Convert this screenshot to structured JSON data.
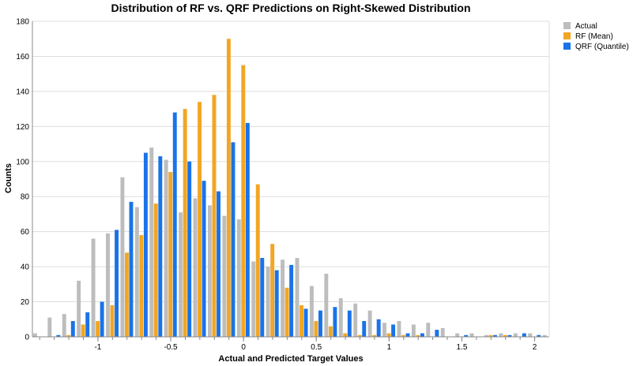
{
  "chart_data": {
    "type": "bar",
    "title": "Distribution of RF vs. QRF Predictions on Right-Skewed Distribution",
    "xlabel": "Actual and Predicted Target Values",
    "ylabel": "Counts",
    "xlim": [
      -1.45,
      2.1
    ],
    "ylim": [
      0,
      180
    ],
    "bin_width": 0.1,
    "x_ticks": [
      -1,
      -0.5,
      0,
      0.5,
      1,
      1.5,
      2
    ],
    "x_tick_labels": [
      "-1",
      "-0.5",
      "0",
      "0.5",
      "1",
      "1.5",
      "2"
    ],
    "y_ticks": [
      0,
      20,
      40,
      60,
      80,
      100,
      120,
      140,
      160,
      180
    ],
    "y_tick_labels": [
      "0",
      "20",
      "40",
      "60",
      "80",
      "100",
      "120",
      "140",
      "160",
      "180"
    ],
    "grid": true,
    "legend_position": "top-right",
    "bin_starts": [
      -1.45,
      -1.35,
      -1.25,
      -1.15,
      -1.05,
      -0.95,
      -0.85,
      -0.75,
      -0.65,
      -0.55,
      -0.45,
      -0.35,
      -0.25,
      -0.15,
      -0.05,
      0.05,
      0.15,
      0.25,
      0.35,
      0.45,
      0.55,
      0.65,
      0.75,
      0.85,
      0.95,
      1.05,
      1.15,
      1.25,
      1.35,
      1.45,
      1.55,
      1.65,
      1.75,
      1.85,
      1.95,
      2.05
    ],
    "series": [
      {
        "name": "Actual",
        "color": "#bdbdbd",
        "values": [
          2,
          11,
          13,
          32,
          56,
          59,
          91,
          74,
          108,
          101,
          71,
          79,
          75,
          69,
          67,
          43,
          40,
          44,
          45,
          29,
          36,
          22,
          19,
          15,
          8,
          9,
          7,
          8,
          5,
          2,
          2,
          1,
          2,
          2,
          2,
          1
        ]
      },
      {
        "name": "RF (Mean)",
        "color": "#f2a623",
        "values": [
          0,
          0,
          1,
          7,
          9,
          18,
          48,
          58,
          76,
          94,
          130,
          134,
          138,
          170,
          155,
          87,
          53,
          28,
          18,
          9,
          6,
          2,
          1,
          1,
          2,
          1,
          1,
          0,
          0,
          0,
          0,
          1,
          1,
          0,
          0,
          0
        ]
      },
      {
        "name": "QRF (Quantile)",
        "color": "#1a73e8",
        "values": [
          0,
          1,
          9,
          14,
          20,
          61,
          77,
          105,
          103,
          128,
          100,
          89,
          83,
          111,
          122,
          45,
          38,
          41,
          16,
          15,
          17,
          15,
          9,
          10,
          7,
          2,
          2,
          4,
          0,
          1,
          0,
          1,
          1,
          2,
          1,
          0
        ]
      }
    ]
  }
}
